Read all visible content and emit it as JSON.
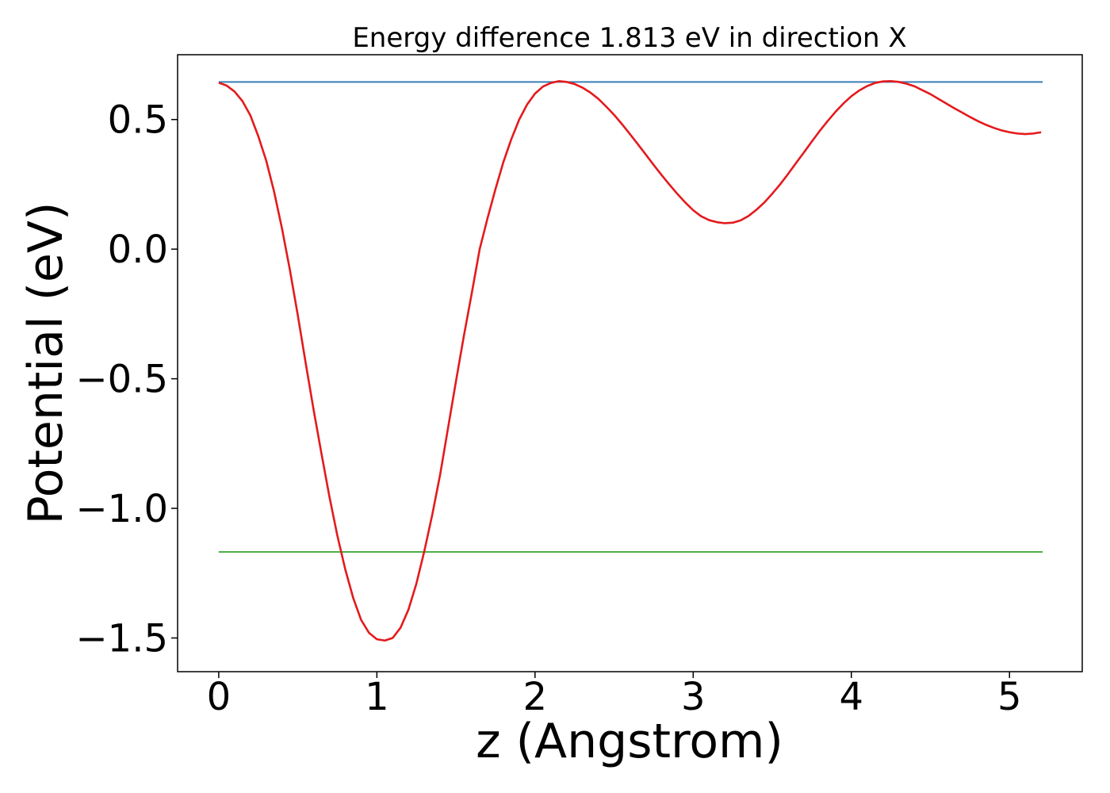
{
  "chart_data": {
    "type": "line",
    "title": "Energy difference 1.813 eV in direction X",
    "xlabel": "z (Angstrom)",
    "ylabel": "Potential (eV)",
    "xlim": [
      -0.26,
      5.46
    ],
    "ylim": [
      -1.63,
      0.75
    ],
    "xticks": [
      0,
      1,
      2,
      3,
      4,
      5
    ],
    "xtick_labels": [
      "0",
      "1",
      "2",
      "3",
      "4",
      "5"
    ],
    "yticks": [
      -1.5,
      -1.0,
      -0.5,
      0.0,
      0.5
    ],
    "ytick_labels": [
      "−1.5",
      "−1.0",
      "−0.5",
      "0.0",
      "0.5"
    ],
    "grid": false,
    "legend": "none",
    "series": [
      {
        "color": "#e41a1c",
        "x": [
          0.0,
          0.05,
          0.1,
          0.15,
          0.2,
          0.25,
          0.3,
          0.35,
          0.4,
          0.45,
          0.5,
          0.55,
          0.6,
          0.65,
          0.7,
          0.75,
          0.8,
          0.85,
          0.9,
          0.95,
          1.0,
          1.05,
          1.1,
          1.15,
          1.2,
          1.25,
          1.3,
          1.35,
          1.4,
          1.45,
          1.5,
          1.55,
          1.6,
          1.65,
          1.7,
          1.75,
          1.8,
          1.85,
          1.9,
          1.95,
          2.0,
          2.05,
          2.1,
          2.15,
          2.2,
          2.25,
          2.3,
          2.35,
          2.4,
          2.45,
          2.5,
          2.55,
          2.6,
          2.65,
          2.7,
          2.75,
          2.8,
          2.85,
          2.9,
          2.95,
          3.0,
          3.05,
          3.1,
          3.15,
          3.2,
          3.25,
          3.3,
          3.35,
          3.4,
          3.45,
          3.5,
          3.55,
          3.6,
          3.65,
          3.7,
          3.75,
          3.8,
          3.85,
          3.9,
          3.95,
          4.0,
          4.05,
          4.1,
          4.15,
          4.2,
          4.25,
          4.3,
          4.35,
          4.4,
          4.45,
          4.5,
          4.55,
          4.6,
          4.65,
          4.7,
          4.75,
          4.8,
          4.85,
          4.9,
          4.95,
          5.0,
          5.05,
          5.1,
          5.15,
          5.2
        ],
        "y": [
          0.642,
          0.631,
          0.608,
          0.571,
          0.516,
          0.436,
          0.342,
          0.222,
          0.08,
          -0.08,
          -0.255,
          -0.44,
          -0.62,
          -0.79,
          -0.955,
          -1.105,
          -1.235,
          -1.345,
          -1.43,
          -1.48,
          -1.505,
          -1.51,
          -1.5,
          -1.46,
          -1.39,
          -1.29,
          -1.165,
          -1.025,
          -0.87,
          -0.69,
          -0.51,
          -0.335,
          -0.17,
          0.0,
          0.12,
          0.232,
          0.336,
          0.424,
          0.5,
          0.558,
          0.6,
          0.627,
          0.641,
          0.648,
          0.645,
          0.637,
          0.623,
          0.604,
          0.58,
          0.55,
          0.518,
          0.482,
          0.444,
          0.405,
          0.365,
          0.325,
          0.286,
          0.249,
          0.213,
          0.18,
          0.15,
          0.127,
          0.112,
          0.104,
          0.1,
          0.102,
          0.111,
          0.128,
          0.152,
          0.18,
          0.214,
          0.25,
          0.29,
          0.332,
          0.373,
          0.415,
          0.456,
          0.494,
          0.53,
          0.562,
          0.59,
          0.612,
          0.629,
          0.641,
          0.647,
          0.648,
          0.645,
          0.638,
          0.628,
          0.613,
          0.598,
          0.58,
          0.562,
          0.544,
          0.527,
          0.51,
          0.494,
          0.48,
          0.468,
          0.458,
          0.451,
          0.446,
          0.444,
          0.446,
          0.451
        ]
      },
      {
        "color": "#377eb8",
        "x": [
          0.0,
          5.21
        ],
        "y": [
          0.645,
          0.645
        ]
      },
      {
        "color": "#4daf4a",
        "x": [
          0.0,
          5.21
        ],
        "y": [
          -1.168,
          -1.168
        ]
      }
    ]
  }
}
